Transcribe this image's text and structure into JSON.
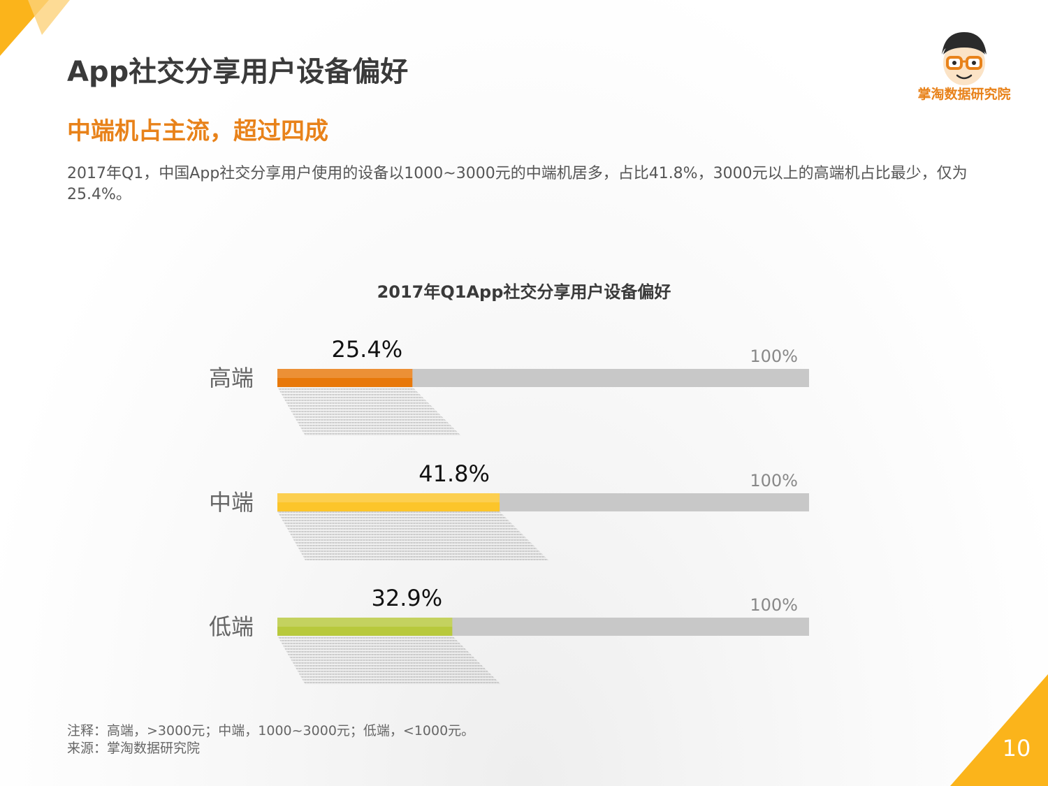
{
  "header": {
    "title": "App社交分享用户设备偏好",
    "subtitle": "中端机占主流，超过四成",
    "description": "2017年Q1，中国App社交分享用户使用的设备以1000~3000元的中端机居多，占比41.8%，3000元以上的高端机占比最少，仅为25.4%。"
  },
  "brand": {
    "name": "掌淘数据研究院",
    "accent_color": "#e8821a",
    "corner_color": "#fbb41b"
  },
  "chart_data": {
    "type": "bar",
    "orientation": "horizontal",
    "title": "2017年Q1App社交分享用户设备偏好",
    "categories": [
      "高端",
      "中端",
      "低端"
    ],
    "values": [
      25.4,
      41.8,
      32.9
    ],
    "value_labels": [
      "25.4%",
      "41.8%",
      "32.9%"
    ],
    "max_label": "100%",
    "xlim": [
      0,
      100
    ],
    "unit": "%",
    "colors": [
      "#e8780a",
      "#fcc52a",
      "#b8c93c"
    ],
    "track_color": "#c8c8c8"
  },
  "footer": {
    "note": "注释：高端，>3000元；中端，1000~3000元；低端，<1000元。",
    "source": "来源：掌淘数据研究院",
    "page_number": "10"
  }
}
